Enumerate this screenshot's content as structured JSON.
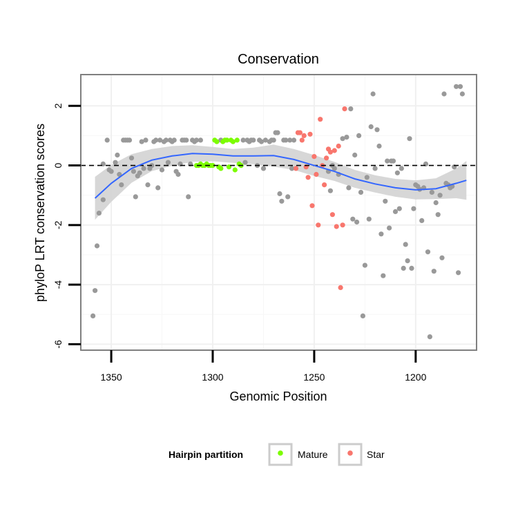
{
  "chart_data": {
    "type": "scatter",
    "title": "Conservation",
    "xlabel": "Genomic Position",
    "ylabel": "phyloP LRT conservation scores",
    "xlim": [
      1365,
      1170
    ],
    "ylim": [
      -6.2,
      3.05
    ],
    "x_reversed": true,
    "x_ticks": [
      1350,
      1300,
      1250,
      1200
    ],
    "y_ticks": [
      -6,
      -4,
      -2,
      0,
      2
    ],
    "reference_line": {
      "y": 0,
      "style": "dashed"
    },
    "legend": {
      "title": "Hairpin partition",
      "position": "bottom",
      "entries": [
        {
          "label": "Mature",
          "color": "#7cfc00"
        },
        {
          "label": "Star",
          "color": "#f8766d"
        }
      ]
    },
    "colors": {
      "other": "#999999",
      "mature": "#7cfc00",
      "star": "#f8766d",
      "smooth": "#3366ff",
      "band": "#d3d3d3"
    },
    "series": [
      {
        "name": "Other",
        "color": "#999999",
        "points": [
          [
            1359,
            -5.05
          ],
          [
            1358,
            -4.2
          ],
          [
            1357,
            -2.7
          ],
          [
            1356,
            -1.6
          ],
          [
            1354,
            -1.15
          ],
          [
            1354,
            0.05
          ],
          [
            1352,
            0.85
          ],
          [
            1351,
            -0.15
          ],
          [
            1350,
            -0.2
          ],
          [
            1348,
            0.1
          ],
          [
            1347,
            0.35
          ],
          [
            1346,
            -0.3
          ],
          [
            1345,
            -0.65
          ],
          [
            1344,
            0.85
          ],
          [
            1343,
            0.85
          ],
          [
            1342,
            0.85
          ],
          [
            1341,
            0.85
          ],
          [
            1340,
            0.25
          ],
          [
            1339,
            -0.2
          ],
          [
            1338,
            -1.05
          ],
          [
            1337,
            -0.35
          ],
          [
            1336,
            -0.25
          ],
          [
            1335,
            0.8
          ],
          [
            1334,
            -0.1
          ],
          [
            1333,
            0.85
          ],
          [
            1332,
            -0.65
          ],
          [
            1331,
            -0.1
          ],
          [
            1330,
            0.0
          ],
          [
            1329,
            0.8
          ],
          [
            1328,
            0.85
          ],
          [
            1327,
            -0.75
          ],
          [
            1326,
            0.85
          ],
          [
            1325,
            -0.15
          ],
          [
            1324,
            0.8
          ],
          [
            1323,
            0.85
          ],
          [
            1322,
            0.1
          ],
          [
            1321,
            0.85
          ],
          [
            1320,
            0.8
          ],
          [
            1319,
            0.85
          ],
          [
            1318,
            -0.2
          ],
          [
            1317,
            -0.3
          ],
          [
            1316,
            0.05
          ],
          [
            1315,
            0.85
          ],
          [
            1314,
            0.85
          ],
          [
            1313,
            0.85
          ],
          [
            1312,
            -1.05
          ],
          [
            1311,
            0.05
          ],
          [
            1310,
            0.85
          ],
          [
            1309,
            0.8
          ],
          [
            1308,
            0.85
          ],
          [
            1306,
            0.85
          ],
          [
            1296,
            0.85
          ],
          [
            1285,
            0.85
          ],
          [
            1284,
            0.1
          ],
          [
            1283,
            0.85
          ],
          [
            1282,
            0.8
          ],
          [
            1281,
            0.85
          ],
          [
            1280,
            0.85
          ],
          [
            1278,
            0.0
          ],
          [
            1277,
            0.85
          ],
          [
            1276,
            0.8
          ],
          [
            1275,
            -0.1
          ],
          [
            1274,
            0.85
          ],
          [
            1272,
            0.8
          ],
          [
            1271,
            0.85
          ],
          [
            1270,
            0.85
          ],
          [
            1269,
            1.1
          ],
          [
            1268,
            1.1
          ],
          [
            1267,
            -0.95
          ],
          [
            1266,
            -1.2
          ],
          [
            1265,
            0.85
          ],
          [
            1264,
            0.85
          ],
          [
            1263,
            -1.05
          ],
          [
            1262,
            0.85
          ],
          [
            1261,
            -0.1
          ],
          [
            1260,
            0.85
          ],
          [
            1243,
            -0.2
          ],
          [
            1242,
            -0.85
          ],
          [
            1241,
            0.0
          ],
          [
            1240,
            -0.1
          ],
          [
            1238,
            -0.3
          ],
          [
            1236,
            0.9
          ],
          [
            1234,
            0.95
          ],
          [
            1233,
            -0.75
          ],
          [
            1232,
            1.9
          ],
          [
            1231,
            -1.8
          ],
          [
            1230,
            0.35
          ],
          [
            1229,
            -1.9
          ],
          [
            1228,
            1.0
          ],
          [
            1227,
            -0.9
          ],
          [
            1226,
            -5.05
          ],
          [
            1225,
            -3.35
          ],
          [
            1224,
            -0.4
          ],
          [
            1223,
            -1.8
          ],
          [
            1222,
            1.3
          ],
          [
            1221,
            2.4
          ],
          [
            1220,
            -0.1
          ],
          [
            1219,
            1.2
          ],
          [
            1218,
            0.65
          ],
          [
            1217,
            -2.3
          ],
          [
            1216,
            -3.7
          ],
          [
            1215,
            -1.2
          ],
          [
            1214,
            0.15
          ],
          [
            1213,
            -2.1
          ],
          [
            1212,
            0.15
          ],
          [
            1211,
            0.15
          ],
          [
            1210,
            -1.55
          ],
          [
            1209,
            -0.25
          ],
          [
            1208,
            -1.45
          ],
          [
            1207,
            -0.1
          ],
          [
            1206,
            -3.45
          ],
          [
            1205,
            -2.65
          ],
          [
            1204,
            -3.2
          ],
          [
            1203,
            0.9
          ],
          [
            1202,
            -3.45
          ],
          [
            1201,
            -1.45
          ],
          [
            1200,
            -0.65
          ],
          [
            1199,
            -0.7
          ],
          [
            1198,
            -0.8
          ],
          [
            1197,
            -1.85
          ],
          [
            1196,
            -0.75
          ],
          [
            1195,
            0.05
          ],
          [
            1194,
            -2.9
          ],
          [
            1193,
            -5.75
          ],
          [
            1192,
            -0.9
          ],
          [
            1191,
            -3.55
          ],
          [
            1190,
            -1.25
          ],
          [
            1189,
            -1.65
          ],
          [
            1188,
            -1.0
          ],
          [
            1187,
            -3.1
          ],
          [
            1186,
            2.4
          ],
          [
            1185,
            -0.6
          ],
          [
            1184,
            -0.65
          ],
          [
            1183,
            -0.75
          ],
          [
            1182,
            -0.7
          ],
          [
            1181,
            -0.05
          ],
          [
            1180,
            2.65
          ],
          [
            1179,
            -3.6
          ],
          [
            1178,
            2.65
          ],
          [
            1177,
            2.4
          ]
        ]
      },
      {
        "name": "Mature",
        "color": "#7cfc00",
        "points": [
          [
            1308,
            0.0
          ],
          [
            1307,
            0.0
          ],
          [
            1306,
            0.05
          ],
          [
            1305,
            0.0
          ],
          [
            1304,
            0.0
          ],
          [
            1303,
            0.05
          ],
          [
            1302,
            0.0
          ],
          [
            1301,
            0.0
          ],
          [
            1300,
            0.0
          ],
          [
            1299,
            0.85
          ],
          [
            1298,
            0.8
          ],
          [
            1297,
            -0.05
          ],
          [
            1296,
            -0.1
          ],
          [
            1295,
            0.8
          ],
          [
            1294,
            0.85
          ],
          [
            1293,
            0.85
          ],
          [
            1292,
            -0.05
          ],
          [
            1291,
            0.85
          ],
          [
            1290,
            0.8
          ],
          [
            1289,
            -0.15
          ],
          [
            1288,
            0.85
          ],
          [
            1287,
            0.05
          ],
          [
            1286,
            0.0
          ]
        ]
      },
      {
        "name": "Star",
        "color": "#f8766d",
        "points": [
          [
            1259,
            -0.1
          ],
          [
            1258,
            1.1
          ],
          [
            1257,
            1.1
          ],
          [
            1256,
            0.85
          ],
          [
            1255,
            1.0
          ],
          [
            1254,
            -0.05
          ],
          [
            1253,
            -0.4
          ],
          [
            1252,
            1.05
          ],
          [
            1251,
            -1.35
          ],
          [
            1250,
            0.3
          ],
          [
            1249,
            -0.3
          ],
          [
            1248,
            -2.0
          ],
          [
            1247,
            1.55
          ],
          [
            1246,
            0.0
          ],
          [
            1245,
            -0.65
          ],
          [
            1244,
            0.25
          ],
          [
            1243,
            0.55
          ],
          [
            1242,
            0.45
          ],
          [
            1241,
            -1.65
          ],
          [
            1240,
            0.5
          ],
          [
            1239,
            -2.05
          ],
          [
            1238,
            0.65
          ],
          [
            1237,
            -4.1
          ],
          [
            1236,
            -2.0
          ],
          [
            1235,
            1.9
          ]
        ]
      }
    ],
    "smooth": {
      "method": "loess",
      "color": "#3366ff",
      "fit": [
        [
          1358,
          -1.1
        ],
        [
          1350,
          -0.6
        ],
        [
          1340,
          -0.1
        ],
        [
          1330,
          0.18
        ],
        [
          1320,
          0.32
        ],
        [
          1310,
          0.4
        ],
        [
          1300,
          0.38
        ],
        [
          1290,
          0.32
        ],
        [
          1280,
          0.32
        ],
        [
          1270,
          0.33
        ],
        [
          1260,
          0.2
        ],
        [
          1250,
          0.0
        ],
        [
          1240,
          -0.2
        ],
        [
          1230,
          -0.45
        ],
        [
          1220,
          -0.62
        ],
        [
          1210,
          -0.75
        ],
        [
          1200,
          -0.82
        ],
        [
          1190,
          -0.78
        ],
        [
          1180,
          -0.6
        ],
        [
          1175,
          -0.5
        ]
      ],
      "upper": [
        [
          1358,
          -0.38
        ],
        [
          1350,
          0.02
        ],
        [
          1340,
          0.38
        ],
        [
          1330,
          0.55
        ],
        [
          1320,
          0.65
        ],
        [
          1310,
          0.68
        ],
        [
          1300,
          0.62
        ],
        [
          1290,
          0.55
        ],
        [
          1280,
          0.6
        ],
        [
          1270,
          0.7
        ],
        [
          1260,
          0.55
        ],
        [
          1250,
          0.35
        ],
        [
          1240,
          0.12
        ],
        [
          1230,
          -0.15
        ],
        [
          1220,
          -0.33
        ],
        [
          1210,
          -0.45
        ],
        [
          1200,
          -0.5
        ],
        [
          1190,
          -0.43
        ],
        [
          1180,
          -0.1
        ],
        [
          1175,
          0.15
        ]
      ],
      "lower": [
        [
          1358,
          -1.82
        ],
        [
          1350,
          -1.22
        ],
        [
          1340,
          -0.58
        ],
        [
          1330,
          -0.19
        ],
        [
          1320,
          -0.01
        ],
        [
          1310,
          0.12
        ],
        [
          1300,
          0.14
        ],
        [
          1290,
          0.09
        ],
        [
          1280,
          0.04
        ],
        [
          1270,
          -0.04
        ],
        [
          1260,
          -0.15
        ],
        [
          1250,
          -0.35
        ],
        [
          1240,
          -0.52
        ],
        [
          1230,
          -0.75
        ],
        [
          1220,
          -0.91
        ],
        [
          1210,
          -1.05
        ],
        [
          1200,
          -1.14
        ],
        [
          1190,
          -1.13
        ],
        [
          1180,
          -1.1
        ],
        [
          1175,
          -1.15
        ]
      ]
    }
  }
}
